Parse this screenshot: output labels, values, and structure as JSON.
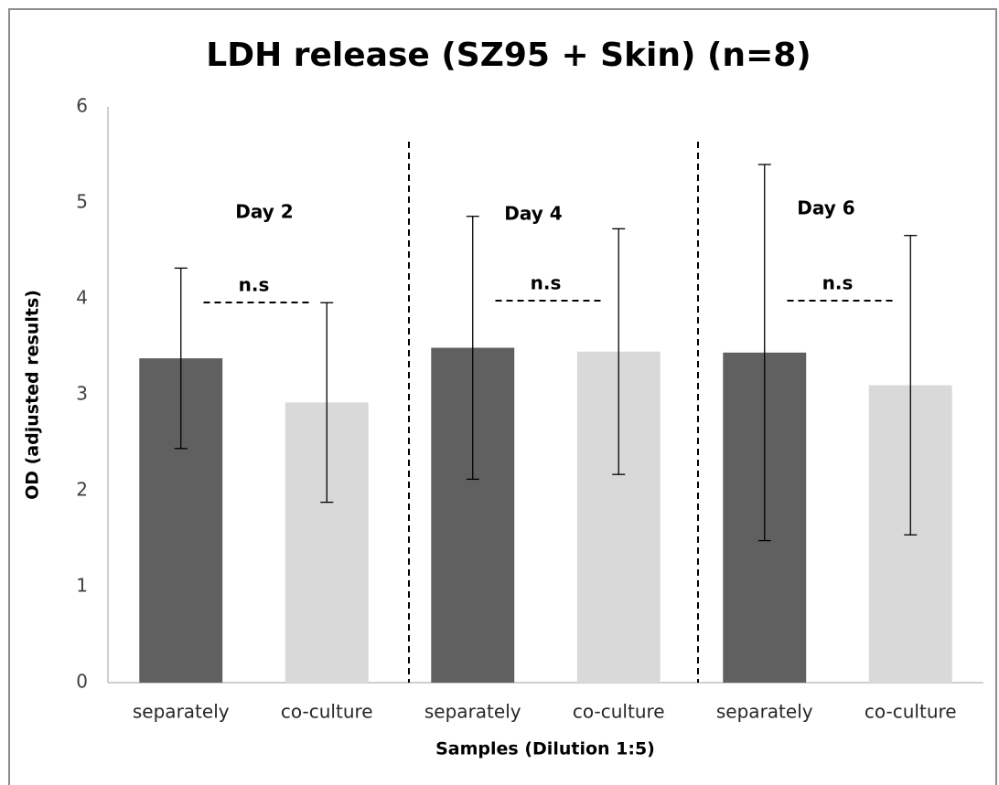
{
  "chart_data": {
    "type": "bar",
    "title": "LDH release (SZ95 + Skin) (n=8)",
    "x_label": "Samples (Dilution 1:5)",
    "y_label": "OD (adjusted results)",
    "categories": [
      "separately",
      "co-culture",
      "separately",
      "co-culture",
      "separately",
      "co-culture"
    ],
    "values": [
      3.38,
      2.92,
      3.49,
      3.45,
      3.44,
      3.1
    ],
    "errors": [
      0.94,
      1.04,
      1.37,
      1.28,
      1.96,
      1.56
    ],
    "colors": [
      "#606060",
      "#d9d9d9",
      "#606060",
      "#d9d9d9",
      "#606060",
      "#d9d9d9"
    ],
    "groups": [
      {
        "label": "Day 2",
        "note": "n.s"
      },
      {
        "label": "Day 4",
        "note": "n.s"
      },
      {
        "label": "Day 6",
        "note": "n.s"
      }
    ],
    "ylim": [
      0,
      6
    ],
    "yticks": [
      0,
      1,
      2,
      3,
      4,
      5,
      6
    ],
    "grid": false
  }
}
